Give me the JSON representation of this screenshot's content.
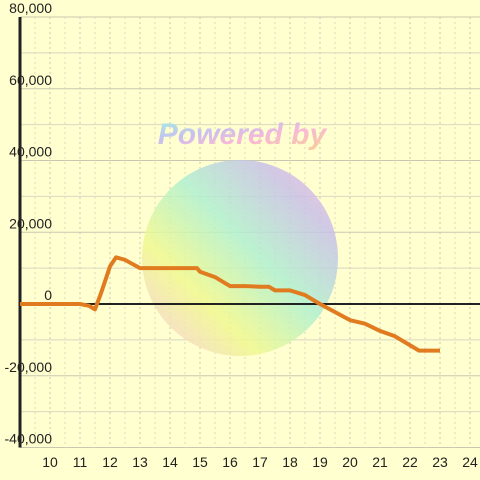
{
  "chart_data": {
    "type": "line",
    "annotation": "Powered by",
    "x": [
      9,
      11,
      11.3,
      11.5,
      11.7,
      12,
      12.2,
      12.5,
      13,
      14,
      14.9,
      15,
      15.5,
      16,
      16.5,
      17,
      17.3,
      17.5,
      18,
      18.5,
      19,
      20,
      20.5,
      21,
      21.5,
      22,
      22.3,
      23
    ],
    "series": [
      {
        "color": "#e07b20",
        "values": [
          0,
          0,
          -500,
          -1500,
          3000,
          10500,
          13000,
          12300,
          10000,
          10000,
          10000,
          9000,
          7500,
          5000,
          5000,
          4800,
          4800,
          3800,
          3800,
          2500,
          0,
          -4500,
          -5500,
          -7500,
          -9000,
          -11500,
          -13000,
          -13000
        ]
      }
    ],
    "xlim": [
      9,
      24.333
    ],
    "ylim": [
      -40000,
      80000
    ],
    "xticks": [
      10,
      11,
      12,
      13,
      14,
      15,
      16,
      17,
      18,
      19,
      20,
      21,
      22,
      23,
      24
    ],
    "yticks": [
      {
        "value": -40000,
        "label": "-40,000"
      },
      {
        "value": -20000,
        "label": "-20,000"
      },
      0,
      {
        "value": 20000,
        "label": "20,000"
      },
      {
        "value": 40000,
        "label": "40,000"
      },
      {
        "value": 60000,
        "label": "60,000"
      },
      {
        "value": 80000,
        "label": "80,000"
      }
    ],
    "grid": true
  }
}
